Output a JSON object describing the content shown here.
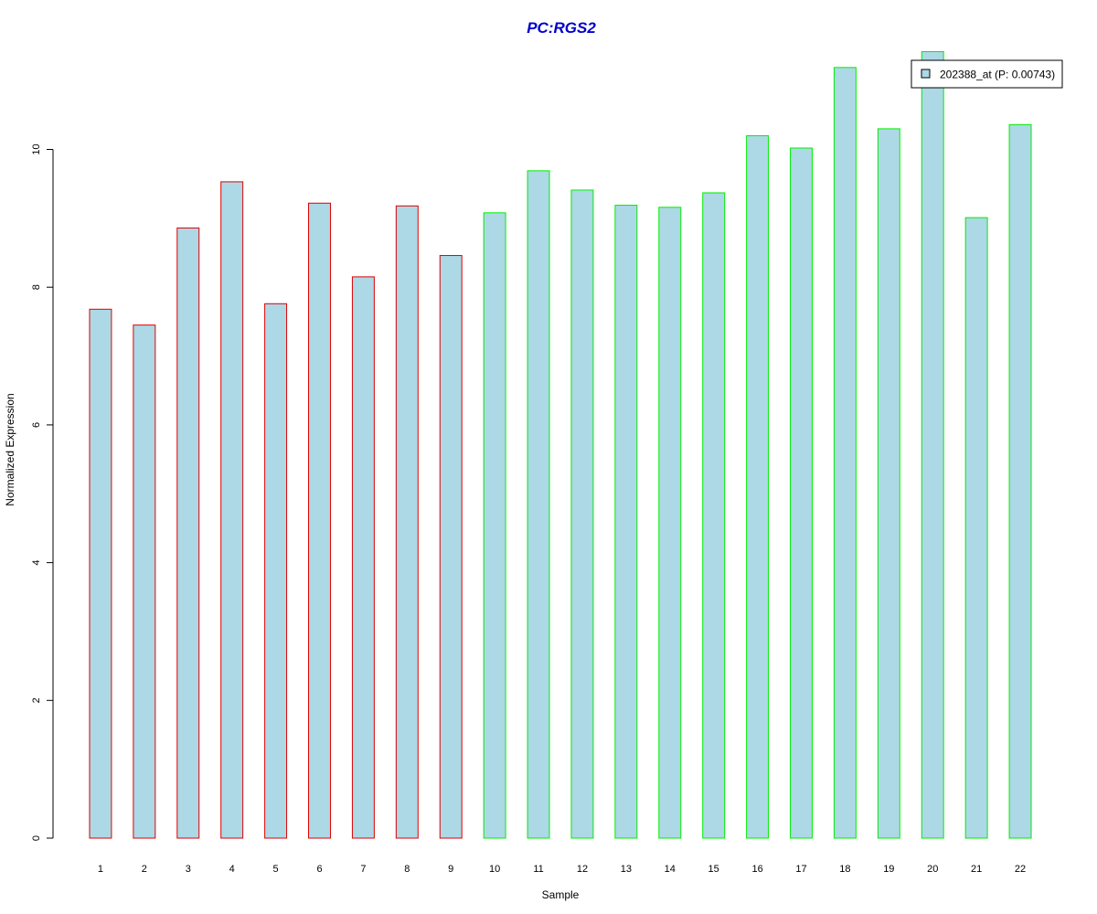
{
  "chart_data": {
    "type": "bar",
    "title": "PC:RGS2",
    "xlabel": "Sample",
    "ylabel": "Normalized Expression",
    "categories": [
      "1",
      "2",
      "3",
      "4",
      "5",
      "6",
      "7",
      "8",
      "9",
      "10",
      "11",
      "12",
      "13",
      "14",
      "15",
      "16",
      "17",
      "18",
      "19",
      "20",
      "21",
      "22"
    ],
    "series": [
      {
        "name": "202388_at (P: 0.00743)",
        "values": [
          7.68,
          7.45,
          8.86,
          9.53,
          7.76,
          9.22,
          8.15,
          9.18,
          8.46,
          9.08,
          9.69,
          9.41,
          9.19,
          9.16,
          9.37,
          10.2,
          10.02,
          11.19,
          10.3,
          11.42,
          9.01,
          10.36
        ]
      }
    ],
    "bar_border_groups": [
      {
        "categories": [
          "1",
          "2",
          "3",
          "4",
          "5",
          "6",
          "7",
          "8",
          "9"
        ],
        "color": "#dd0000"
      },
      {
        "categories": [
          "10",
          "11",
          "12",
          "13",
          "14",
          "15",
          "16",
          "17",
          "18",
          "19",
          "20",
          "21",
          "22"
        ],
        "color": "#00ee00"
      }
    ],
    "bar_fill": "#add8e6",
    "title_color": "#0000cc",
    "yticks": [
      0,
      2,
      4,
      6,
      8,
      10
    ],
    "ylim": [
      0,
      11.5
    ],
    "legend": {
      "position": "top-right",
      "entries": [
        "202388_at (P: 0.00743)"
      ]
    },
    "grid": false
  }
}
